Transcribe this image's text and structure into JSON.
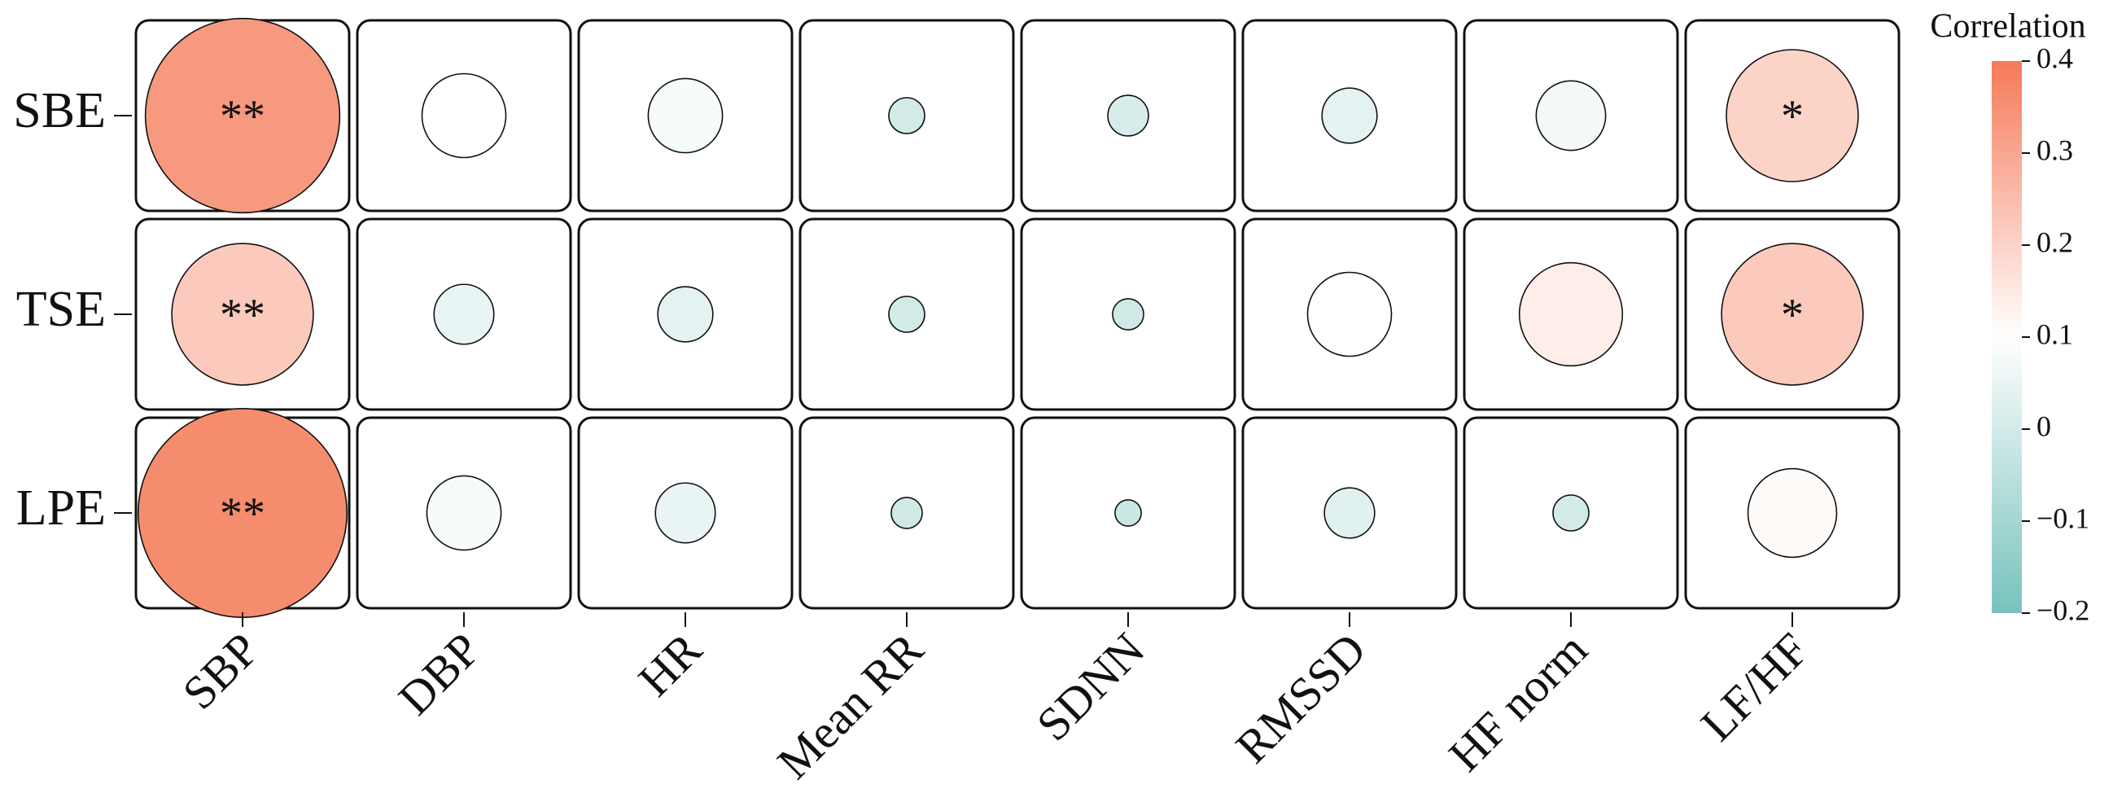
{
  "chart_data": {
    "type": "correlation-circles",
    "colorbar_title": "Correlation",
    "rows": [
      "SBE",
      "TSE",
      "LPE"
    ],
    "columns": [
      "SBP",
      "DBP",
      "HR",
      "Mean RR",
      "SDNN",
      "RMSSD",
      "HF norm",
      "LF/HF"
    ],
    "values": [
      [
        0.33,
        0.1,
        0.08,
        0.0,
        0.01,
        0.04,
        0.07,
        0.2
      ],
      [
        0.22,
        0.05,
        0.04,
        0.0,
        -0.01,
        0.1,
        0.14,
        0.22
      ],
      [
        0.36,
        0.08,
        0.05,
        -0.01,
        -0.02,
        0.03,
        0.0,
        0.11
      ]
    ],
    "annotations": [
      [
        "**",
        null,
        null,
        null,
        null,
        null,
        null,
        "*"
      ],
      [
        "**",
        null,
        null,
        null,
        null,
        null,
        null,
        "*"
      ],
      [
        "**",
        null,
        null,
        null,
        null,
        null,
        null,
        null
      ]
    ],
    "colormap": [
      "#78c2bc",
      "#ffffff",
      "#f57a58"
    ],
    "clim": [
      -0.2,
      0.4
    ],
    "cticks": [
      {
        "value": -0.2,
        "label": "−0.2"
      },
      {
        "value": -0.1,
        "label": "−0.1"
      },
      0,
      0.1,
      0.2,
      0.3,
      0.4
    ]
  }
}
